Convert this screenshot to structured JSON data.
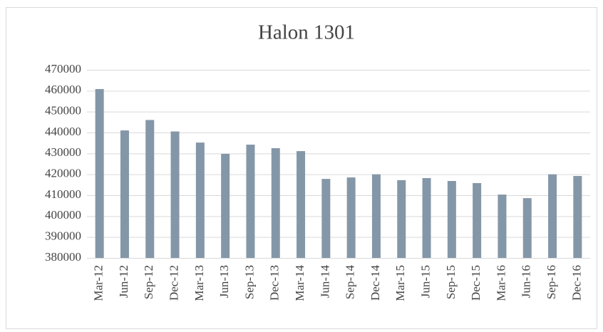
{
  "chart_data": {
    "type": "bar",
    "title": "Halon 1301",
    "categories": [
      "Mar-12",
      "Jun-12",
      "Sep-12",
      "Dec-12",
      "Mar-13",
      "Jun-13",
      "Sep-13",
      "Dec-13",
      "Mar-14",
      "Jun-14",
      "Sep-14",
      "Dec-14",
      "Mar-15",
      "Jun-15",
      "Sep-15",
      "Dec-15",
      "Mar-16",
      "Jun-16",
      "Sep-16",
      "Dec-16"
    ],
    "values": [
      460800,
      441000,
      446000,
      440500,
      435200,
      429800,
      434200,
      432500,
      431100,
      417800,
      418500,
      420000,
      417200,
      418200,
      416800,
      415800,
      410300,
      408600,
      420000,
      419200
    ],
    "color": "#8497a8",
    "ylim": [
      380000,
      470000
    ],
    "yticks": [
      380000,
      390000,
      400000,
      410000,
      420000,
      430000,
      440000,
      450000,
      460000,
      470000
    ],
    "grid": true
  }
}
